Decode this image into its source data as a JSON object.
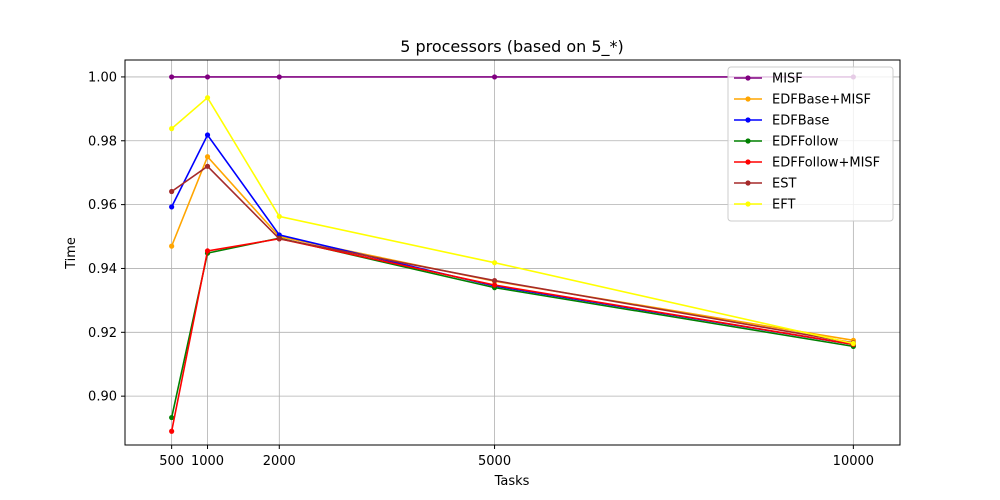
{
  "chart_data": {
    "type": "line",
    "title": "5 processors (based on 5_*)",
    "xlabel": "Tasks",
    "ylabel": "Time",
    "x": [
      500,
      1000,
      2000,
      5000,
      10000
    ],
    "x_ticks": [
      500,
      1000,
      2000,
      5000,
      10000
    ],
    "xlim": [
      -150,
      10650
    ],
    "y_ticks": [
      "0.90",
      "0.92",
      "0.94",
      "0.96",
      "0.98",
      "1.00"
    ],
    "ylim": [
      0.8847,
      1.0053
    ],
    "grid": true,
    "legend_position": "top-right",
    "series": [
      {
        "name": "MISF",
        "color": "#800080",
        "values": [
          1.0,
          1.0,
          1.0,
          1.0,
          1.0
        ]
      },
      {
        "name": "EDFBase+MISF",
        "color": "#FFA500",
        "values": [
          0.947,
          0.975,
          0.95,
          0.936,
          0.9175
        ]
      },
      {
        "name": "EDFBase",
        "color": "#0000FF",
        "values": [
          0.9593,
          0.9818,
          0.9505,
          0.9345,
          0.9162
        ]
      },
      {
        "name": "EDFFollow",
        "color": "#008000",
        "values": [
          0.8933,
          0.9448,
          0.9495,
          0.934,
          0.9156
        ]
      },
      {
        "name": "EDFFollow+MISF",
        "color": "#FF0000",
        "values": [
          0.889,
          0.9455,
          0.9493,
          0.9348,
          0.9162
        ]
      },
      {
        "name": "EST",
        "color": "#A52A2A",
        "values": [
          0.9641,
          0.972,
          0.9493,
          0.9362,
          0.9167
        ]
      },
      {
        "name": "EFT",
        "color": "#FFFF00",
        "values": [
          0.9838,
          0.9935,
          0.9563,
          0.9418,
          0.9165
        ]
      }
    ]
  }
}
